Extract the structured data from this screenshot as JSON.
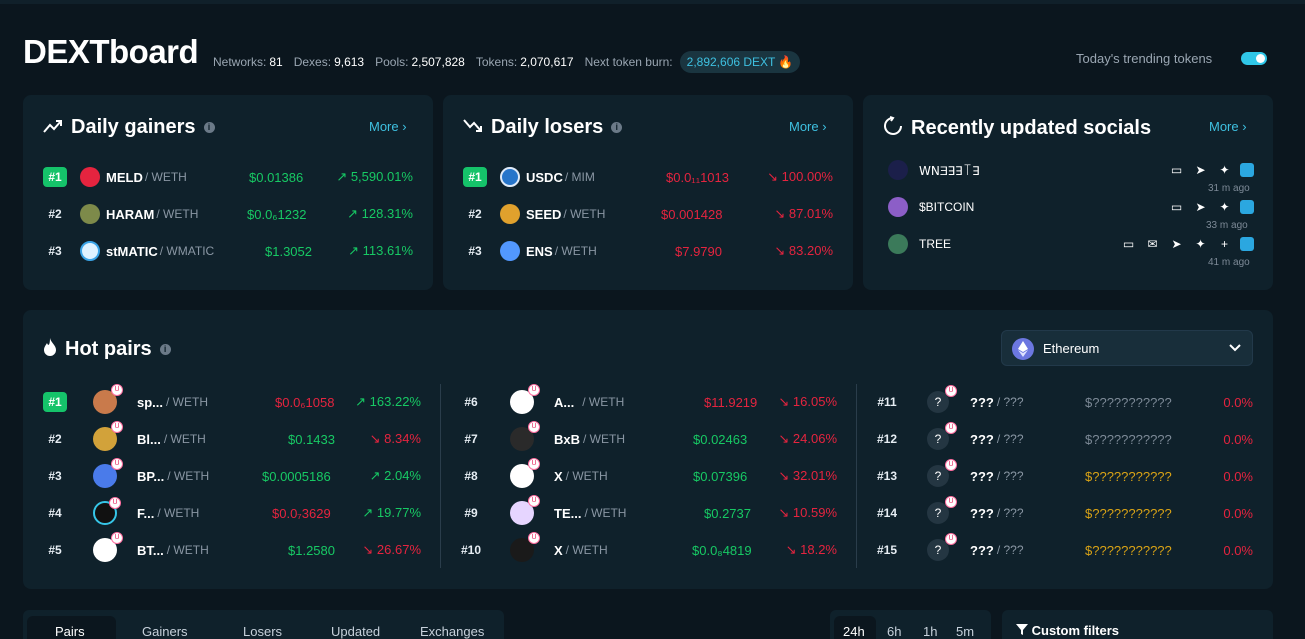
{
  "header": {
    "title": "DEXTboard",
    "stats": [
      {
        "label": "Networks:",
        "value": "81"
      },
      {
        "label": "Dexes:",
        "value": "9,613"
      },
      {
        "label": "Pools:",
        "value": "2,507,828"
      },
      {
        "label": "Tokens:",
        "value": "2,070,617"
      }
    ],
    "burn_label": "Next token burn:",
    "burn_value": "2,892,606 DEXT",
    "trending_label": "Today's trending tokens"
  },
  "gainers": {
    "title": "Daily gainers",
    "more": "More",
    "rows": [
      {
        "rank": "#1",
        "symbol": "MELD",
        "quote": "/ WETH",
        "price": "$0.01386",
        "pct": "5,590.01%"
      },
      {
        "rank": "#2",
        "symbol": "HARAM",
        "quote": "/ WETH",
        "price": "$0.0₆1232",
        "pct": "128.31%"
      },
      {
        "rank": "#3",
        "symbol": "stMATIC",
        "quote": "/ WMATIC",
        "price": "$1.3052",
        "pct": "113.61%"
      }
    ]
  },
  "losers": {
    "title": "Daily losers",
    "more": "More",
    "rows": [
      {
        "rank": "#1",
        "symbol": "USDC",
        "quote": "/ MIM",
        "price": "$0.0₁₁1013",
        "pct": "100.00%"
      },
      {
        "rank": "#2",
        "symbol": "SEED",
        "quote": "/ WETH",
        "price": "$0.001428",
        "pct": "87.01%"
      },
      {
        "rank": "#3",
        "symbol": "ENS",
        "quote": "/ WETH",
        "price": "$7.9790",
        "pct": "83.20%"
      }
    ]
  },
  "socials": {
    "title": "Recently updated socials",
    "more": "More",
    "rows": [
      {
        "name": "ꓪꓠƎꓱꓱ꓄ꓱ",
        "time": "31 m ago"
      },
      {
        "name": "$BITCOIN",
        "time": "33 m ago"
      },
      {
        "name": "TREE",
        "time": "41 m ago"
      }
    ]
  },
  "hot_pairs": {
    "title": "Hot pairs",
    "network": "Ethereum",
    "col1": [
      {
        "rank": "#1",
        "symbol": "sp...",
        "quote": "/ WETH",
        "price": "$0.0₆1058",
        "pct": "163.22%"
      },
      {
        "rank": "#2",
        "symbol": "Bl...",
        "quote": "/ WETH",
        "price": "$0.1433",
        "pct": "8.34%"
      },
      {
        "rank": "#3",
        "symbol": "BP...",
        "quote": "/ WETH",
        "price": "$0.0005186",
        "pct": "2.04%"
      },
      {
        "rank": "#4",
        "symbol": "F...",
        "quote": "/ WETH",
        "price": "$0.0₇3629",
        "pct": "19.77%"
      },
      {
        "rank": "#5",
        "symbol": "BT...",
        "quote": "/ WETH",
        "price": "$1.2580",
        "pct": "26.67%"
      }
    ],
    "col2": [
      {
        "rank": "#6",
        "symbol": "A...",
        "quote": "/ WETH",
        "price": "$11.9219",
        "pct": "16.05%"
      },
      {
        "rank": "#7",
        "symbol": "BxB",
        "quote": "/ WETH",
        "price": "$0.02463",
        "pct": "24.06%"
      },
      {
        "rank": "#8",
        "symbol": "X",
        "quote": "/ WETH",
        "price": "$0.07396",
        "pct": "32.01%"
      },
      {
        "rank": "#9",
        "symbol": "TE...",
        "quote": "/ WETH",
        "price": "$0.2737",
        "pct": "10.59%"
      },
      {
        "rank": "#10",
        "symbol": "X",
        "quote": "/ WETH",
        "price": "$0.0₈4819",
        "pct": "18.2%"
      }
    ],
    "col3": [
      {
        "rank": "#11",
        "symbol": "???",
        "quote": "/ ???",
        "price": "$???????????",
        "pct": "0.0%"
      },
      {
        "rank": "#12",
        "symbol": "???",
        "quote": "/ ???",
        "price": "$???????????",
        "pct": "0.0%"
      },
      {
        "rank": "#13",
        "symbol": "???",
        "quote": "/ ???",
        "price": "$???????????",
        "pct": "0.0%"
      },
      {
        "rank": "#14",
        "symbol": "???",
        "quote": "/ ???",
        "price": "$???????????",
        "pct": "0.0%"
      },
      {
        "rank": "#15",
        "symbol": "???",
        "quote": "/ ???",
        "price": "$???????????",
        "pct": "0.0%"
      }
    ]
  },
  "tabs": [
    "Pairs",
    "Gainers",
    "Losers",
    "Updated",
    "Exchanges"
  ],
  "timeframes": [
    "24h",
    "6h",
    "1h",
    "5m"
  ],
  "filters_label": "Custom filters",
  "colors": {
    "accent": "#3ec0e0",
    "gain": "#17c964",
    "loss": "#e5243f",
    "unknown": "#d9a316"
  }
}
